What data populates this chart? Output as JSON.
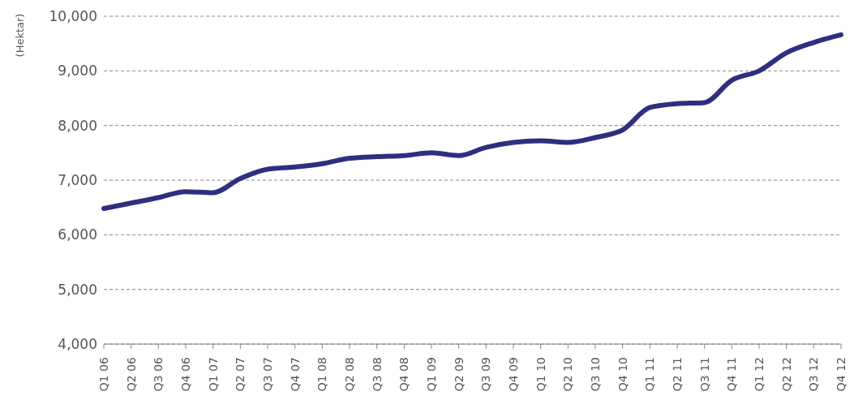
{
  "chart_data": {
    "type": "line",
    "ylabel": "(Hektar)",
    "categories": [
      "Q1 06",
      "Q2 06",
      "Q3 06",
      "Q4 06",
      "Q1 07",
      "Q2 07",
      "Q3 07",
      "Q4 07",
      "Q1 08",
      "Q2 08",
      "Q3 08",
      "Q4 08",
      "Q1 09",
      "Q2 09",
      "Q3 09",
      "Q4 09",
      "Q1 10",
      "Q2 10",
      "Q3 10",
      "Q4 10",
      "Q1 11",
      "Q2 11",
      "Q3 11",
      "Q4 11",
      "Q1 12",
      "Q2 12",
      "Q3 12",
      "Q4 12"
    ],
    "series": [
      {
        "color": "#2e2f7e",
        "values": [
          6480,
          6580,
          6680,
          6790,
          6770,
          7030,
          7200,
          7240,
          7300,
          7400,
          7430,
          7450,
          7500,
          7450,
          7600,
          7690,
          7720,
          7690,
          7780,
          7920,
          8330,
          8400,
          8420,
          8830,
          9000,
          9330,
          9520,
          9660
        ]
      }
    ],
    "ylim": [
      4000,
      10000
    ],
    "yticks": [
      {
        "value": 4000,
        "label": "4,000"
      },
      {
        "value": 5000,
        "label": "5,000"
      },
      {
        "value": 6000,
        "label": "6,000"
      },
      {
        "value": 7000,
        "label": "7,000"
      },
      {
        "value": 8000,
        "label": "8,000"
      },
      {
        "value": 9000,
        "label": "9,000"
      },
      {
        "value": 10000,
        "label": "10,000"
      }
    ],
    "grid": "y",
    "line_style": "solid"
  }
}
